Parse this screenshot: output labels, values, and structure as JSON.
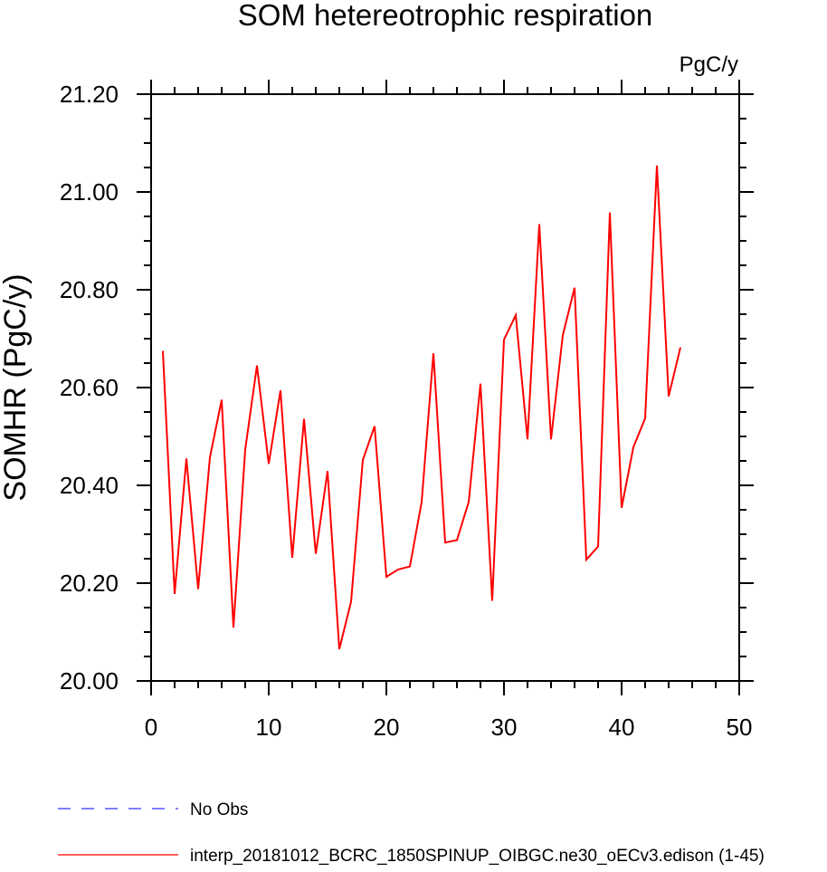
{
  "chart_data": {
    "type": "line",
    "title": "SOM hetereotrophic respiration",
    "units": "PgC/y",
    "ylabel": "SOMHR  (PgC/y)",
    "xlabel": "",
    "xlim": [
      0,
      50
    ],
    "ylim": [
      20.0,
      21.2
    ],
    "xticks": [
      0,
      10,
      20,
      30,
      40,
      50
    ],
    "yticks": [
      20.0,
      20.2,
      20.4,
      20.6,
      20.8,
      21.0,
      21.2
    ],
    "xtick_labels": [
      "0",
      "10",
      "20",
      "30",
      "40",
      "50"
    ],
    "ytick_labels": [
      "20.00",
      "20.20",
      "20.40",
      "20.60",
      "20.80",
      "21.00",
      "21.20"
    ],
    "grid": false,
    "legend_position": "bottom-left",
    "series": [
      {
        "name": "interp_20181012_BCRC_1850SPINUP_OIBGC.ne30_oECv3.edison (1-45)",
        "color": "#ff0000",
        "style": "solid",
        "x": [
          1,
          2,
          3,
          4,
          5,
          6,
          7,
          8,
          9,
          10,
          11,
          12,
          13,
          14,
          15,
          16,
          17,
          18,
          19,
          20,
          21,
          22,
          23,
          24,
          25,
          26,
          27,
          28,
          29,
          30,
          31,
          32,
          33,
          34,
          35,
          36,
          37,
          38,
          39,
          40,
          41,
          42,
          43,
          44,
          45
        ],
        "y": [
          20.675,
          20.178,
          20.455,
          20.188,
          20.457,
          20.575,
          20.109,
          20.473,
          20.645,
          20.444,
          20.594,
          20.252,
          20.536,
          20.26,
          20.429,
          20.065,
          20.162,
          20.452,
          20.521,
          20.213,
          20.228,
          20.234,
          20.366,
          20.67,
          20.283,
          20.288,
          20.366,
          20.608,
          20.164,
          20.698,
          20.748,
          20.494,
          20.934,
          20.494,
          20.707,
          20.804,
          20.248,
          20.275,
          20.958,
          20.354,
          20.478,
          20.537,
          21.054,
          20.582,
          20.682
        ]
      }
    ],
    "legend": [
      {
        "label": "No Obs",
        "color": "#3333ff",
        "style": "dashed"
      },
      {
        "label": "interp_20181012_BCRC_1850SPINUP_OIBGC.ne30_oECv3.edison (1-45)",
        "color": "#ff0000",
        "style": "solid"
      }
    ]
  }
}
